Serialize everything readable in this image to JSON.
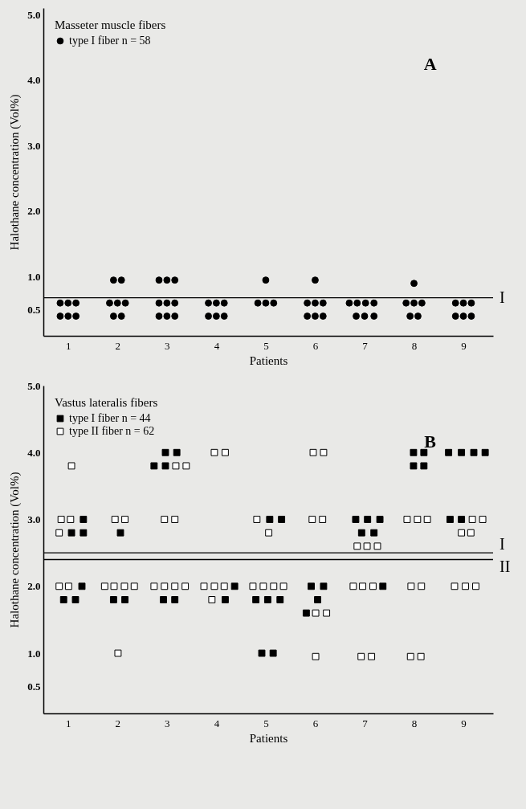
{
  "chart_data": [
    {
      "type": "scatter",
      "xlabel": "Patients",
      "ylabel": "Halothane concentration (Vol%)",
      "legend_title": "Masseter muscle fibers",
      "legend": "top left",
      "grid": false,
      "annotations": [
        "A"
      ],
      "xlim": [
        0.5,
        9.6
      ],
      "xticks": [
        1,
        2,
        3,
        4,
        5,
        6,
        7,
        8,
        9
      ],
      "ylim": [
        0.1,
        5.1
      ],
      "yticks": [
        0.5,
        {
          "value": 1,
          "label": "1.0"
        },
        {
          "value": 2,
          "label": "2.0"
        },
        {
          "value": 3,
          "label": "3.0"
        },
        {
          "value": 4,
          "label": "4.0"
        },
        {
          "value": 5,
          "label": "5.0"
        }
      ],
      "ref_lines": [
        {
          "axis": "y",
          "value": 0.68,
          "label": "I"
        }
      ],
      "series": [
        {
          "name": "type I fiber n = 58",
          "color": "#000000",
          "marker": "circle",
          "x": [
            0.84,
            1,
            1.16,
            0.84,
            1,
            1.16,
            1.92,
            2.08,
            1.84,
            2,
            2.16,
            1.92,
            2.08,
            2.84,
            3,
            3.16,
            2.84,
            3,
            3.16,
            2.84,
            3,
            3.16,
            3.84,
            4,
            4.16,
            3.84,
            4,
            4.16,
            5,
            4.84,
            5,
            5.16,
            6,
            5.84,
            6,
            6.16,
            5.84,
            6,
            6.16,
            6.69,
            6.85,
            7.02,
            7.19,
            6.83,
            7,
            7.19,
            8,
            7.84,
            8,
            8.16,
            7.92,
            8.08,
            8.84,
            9,
            9.16,
            8.84,
            9,
            9.16
          ],
          "values": [
            0.6,
            0.6,
            0.6,
            0.4,
            0.4,
            0.4,
            0.95,
            0.95,
            0.6,
            0.6,
            0.6,
            0.4,
            0.4,
            0.95,
            0.95,
            0.95,
            0.6,
            0.6,
            0.6,
            0.4,
            0.4,
            0.4,
            0.6,
            0.6,
            0.6,
            0.4,
            0.4,
            0.4,
            0.95,
            0.6,
            0.6,
            0.6,
            0.95,
            0.6,
            0.6,
            0.6,
            0.4,
            0.4,
            0.4,
            0.6,
            0.6,
            0.6,
            0.6,
            0.4,
            0.4,
            0.4,
            0.9,
            0.6,
            0.6,
            0.6,
            0.4,
            0.4,
            0.6,
            0.6,
            0.6,
            0.4,
            0.4,
            0.4
          ]
        }
      ]
    },
    {
      "type": "scatter",
      "xlabel": "Patients",
      "ylabel": "Halothane concentration (Vol%)",
      "legend_title": "Vastus lateralis fibers",
      "legend": "top left",
      "grid": false,
      "annotations": [
        "B"
      ],
      "xlim": [
        0.5,
        9.6
      ],
      "xticks": [
        1,
        2,
        3,
        4,
        5,
        6,
        7,
        8,
        9
      ],
      "ylim": [
        0.1,
        5.0
      ],
      "yticks": [
        0.5,
        {
          "value": 1,
          "label": "1.0"
        },
        {
          "value": 2,
          "label": "2.0"
        },
        {
          "value": 3,
          "label": "3.0"
        },
        {
          "value": 4,
          "label": "4.0"
        },
        {
          "value": 5,
          "label": "5.0"
        }
      ],
      "ref_lines": [
        {
          "axis": "y",
          "value": 2.5,
          "label": "I"
        },
        {
          "axis": "y",
          "value": 2.4,
          "label": "II"
        }
      ],
      "series": [
        {
          "name": "type I fiber n = 44",
          "color": "#000000",
          "marker": "square",
          "x": [
            1.31,
            1.07,
            1.31,
            1.28,
            0.91,
            1.15,
            2.06,
            1.92,
            2.15,
            2.97,
            3.2,
            2.74,
            2.97,
            2.93,
            3.16,
            4.37,
            4.18,
            5.08,
            5.32,
            4.8,
            5.04,
            5.29,
            4.92,
            5.15,
            5.92,
            6.17,
            6.05,
            5.82,
            6.82,
            7.06,
            7.31,
            6.94,
            7.19,
            7.37,
            7.99,
            8.2,
            7.99,
            8.2,
            8.7,
            8.96,
            9.21,
            9.44,
            8.73,
            8.96
          ],
          "values": [
            3.0,
            2.8,
            2.8,
            2.0,
            1.8,
            1.8,
            2.8,
            1.8,
            1.8,
            4.0,
            4.0,
            3.8,
            3.8,
            1.8,
            1.8,
            2.0,
            1.8,
            3.0,
            3.0,
            1.8,
            1.8,
            1.8,
            1.0,
            1.0,
            2.0,
            2.0,
            1.8,
            1.6,
            3.0,
            3.0,
            3.0,
            2.8,
            2.8,
            2.0,
            4.0,
            4.0,
            3.8,
            3.8,
            4.0,
            4.0,
            4.0,
            4.0,
            3.0,
            3.0
          ]
        },
        {
          "name": "type II fiber n = 62",
          "color": "#ffffff",
          "marker": "square",
          "x": [
            1.07,
            0.86,
            1.05,
            0.82,
            0.82,
            1.01,
            1.95,
            2.15,
            1.74,
            1.93,
            2.14,
            2.34,
            2.01,
            3.18,
            3.39,
            2.95,
            3.16,
            2.74,
            2.95,
            3.16,
            3.37,
            3.96,
            4.18,
            3.75,
            3.96,
            4.16,
            3.91,
            4.82,
            5.06,
            4.74,
            4.95,
            5.16,
            5.36,
            5.96,
            6.17,
            5.94,
            6.15,
            6.01,
            6.23,
            6.01,
            6.85,
            7.05,
            7.26,
            6.77,
            6.96,
            7.17,
            6.93,
            7.14,
            7.86,
            8.07,
            8.27,
            7.94,
            8.15,
            7.93,
            8.14,
            9.18,
            9.39,
            8.96,
            9.15,
            8.82,
            9.04,
            9.25
          ],
          "values": [
            3.8,
            3.0,
            3.0,
            2.8,
            2.0,
            2.0,
            3.0,
            3.0,
            2.0,
            2.0,
            2.0,
            2.0,
            1.0,
            3.8,
            3.8,
            3.0,
            3.0,
            2.0,
            2.0,
            2.0,
            2.0,
            4.0,
            4.0,
            2.0,
            2.0,
            2.0,
            1.8,
            3.0,
            2.8,
            2.0,
            2.0,
            2.0,
            2.0,
            4.0,
            4.0,
            3.0,
            3.0,
            1.6,
            1.6,
            0.95,
            2.6,
            2.6,
            2.6,
            2.0,
            2.0,
            2.0,
            0.95,
            0.95,
            3.0,
            3.0,
            3.0,
            2.0,
            2.0,
            0.95,
            0.95,
            3.0,
            3.0,
            2.8,
            2.8,
            2.0,
            2.0,
            2.0
          ]
        }
      ]
    }
  ]
}
